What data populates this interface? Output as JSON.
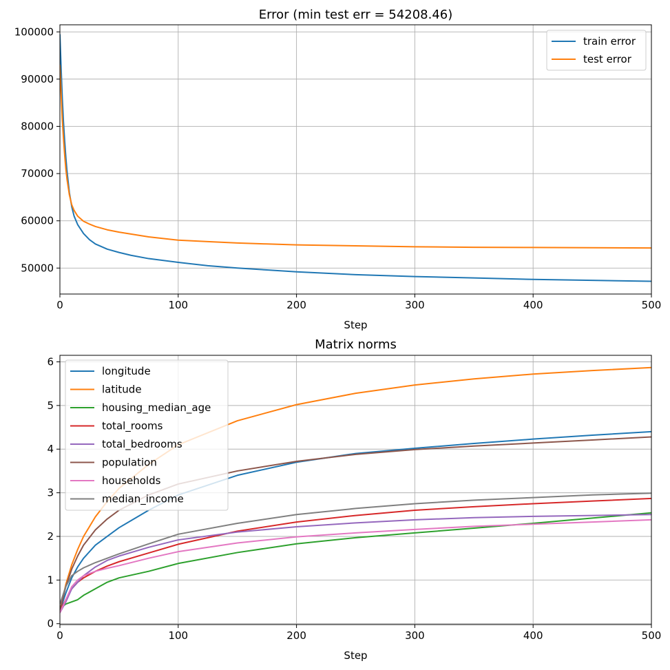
{
  "chart_data": [
    {
      "type": "line",
      "title": "Error (min test err = 54208.46)",
      "xlabel": "Step",
      "ylabel": "",
      "xlim": [
        0,
        500
      ],
      "ylim": [
        44500,
        101500
      ],
      "xticks": [
        0,
        100,
        200,
        300,
        400,
        500
      ],
      "yticks": [
        50000,
        60000,
        70000,
        80000,
        90000,
        100000
      ],
      "grid": true,
      "legend": "top-right",
      "series": [
        {
          "name": "train error",
          "color": "#1f77b4",
          "x": [
            0,
            1,
            2,
            3,
            4,
            5,
            6,
            8,
            10,
            12,
            15,
            20,
            25,
            30,
            40,
            50,
            60,
            75,
            100,
            125,
            150,
            175,
            200,
            250,
            300,
            350,
            400,
            450,
            500
          ],
          "y": [
            99500,
            92500,
            86000,
            81000,
            77000,
            73500,
            70500,
            66000,
            63000,
            61000,
            59200,
            57300,
            56000,
            55100,
            54000,
            53300,
            52700,
            52000,
            51200,
            50500,
            50000,
            49600,
            49200,
            48600,
            48200,
            47900,
            47600,
            47400,
            47200
          ]
        },
        {
          "name": "test error",
          "color": "#ff7f0e",
          "x": [
            0,
            1,
            2,
            3,
            4,
            5,
            6,
            8,
            10,
            12,
            15,
            20,
            25,
            30,
            40,
            50,
            60,
            75,
            100,
            125,
            150,
            175,
            200,
            250,
            300,
            350,
            400,
            450,
            500
          ],
          "y": [
            93000,
            87000,
            81500,
            77500,
            74000,
            71000,
            68800,
            65500,
            63400,
            62200,
            61000,
            59900,
            59300,
            58800,
            58100,
            57600,
            57200,
            56600,
            55900,
            55600,
            55300,
            55100,
            54900,
            54700,
            54500,
            54400,
            54350,
            54300,
            54250
          ]
        }
      ]
    },
    {
      "type": "line",
      "title": "Matrix norms",
      "xlabel": "Step",
      "ylabel": "",
      "xlim": [
        0,
        500
      ],
      "ylim": [
        -0.02,
        6.15
      ],
      "xticks": [
        0,
        100,
        200,
        300,
        400,
        500
      ],
      "yticks": [
        0,
        1,
        2,
        3,
        4,
        5,
        6
      ],
      "grid": true,
      "legend": "top-left",
      "x": [
        0,
        5,
        10,
        15,
        20,
        30,
        40,
        50,
        75,
        100,
        150,
        200,
        250,
        300,
        350,
        400,
        450,
        500
      ],
      "series": [
        {
          "name": "longitude",
          "color": "#1f77b4",
          "values": [
            0.3,
            0.7,
            1.05,
            1.3,
            1.5,
            1.8,
            2.0,
            2.2,
            2.6,
            2.95,
            3.4,
            3.7,
            3.9,
            4.02,
            4.13,
            4.23,
            4.32,
            4.4
          ]
        },
        {
          "name": "latitude",
          "color": "#ff7f0e",
          "values": [
            0.3,
            0.9,
            1.35,
            1.7,
            2.0,
            2.45,
            2.8,
            3.1,
            3.65,
            4.1,
            4.65,
            5.02,
            5.28,
            5.47,
            5.61,
            5.72,
            5.8,
            5.87
          ]
        },
        {
          "name": "housing_median_age",
          "color": "#2ca02c",
          "values": [
            0.35,
            0.45,
            0.5,
            0.55,
            0.65,
            0.8,
            0.95,
            1.05,
            1.2,
            1.38,
            1.63,
            1.83,
            1.97,
            2.08,
            2.19,
            2.3,
            2.42,
            2.54
          ]
        },
        {
          "name": "total_rooms",
          "color": "#d62728",
          "values": [
            0.3,
            0.55,
            0.8,
            0.95,
            1.05,
            1.2,
            1.32,
            1.42,
            1.62,
            1.82,
            2.12,
            2.33,
            2.48,
            2.6,
            2.68,
            2.75,
            2.81,
            2.87
          ]
        },
        {
          "name": "total_bedrooms",
          "color": "#9467bd",
          "values": [
            0.25,
            0.5,
            0.8,
            0.95,
            1.1,
            1.3,
            1.45,
            1.55,
            1.75,
            1.92,
            2.1,
            2.22,
            2.31,
            2.38,
            2.43,
            2.46,
            2.48,
            2.5
          ]
        },
        {
          "name": "population",
          "color": "#8c564b",
          "values": [
            0.3,
            0.85,
            1.25,
            1.55,
            1.8,
            2.15,
            2.4,
            2.6,
            2.95,
            3.2,
            3.5,
            3.72,
            3.88,
            3.99,
            4.07,
            4.14,
            4.21,
            4.28
          ]
        },
        {
          "name": "households",
          "color": "#e377c2",
          "values": [
            0.25,
            0.55,
            0.85,
            1.0,
            1.1,
            1.2,
            1.27,
            1.33,
            1.5,
            1.65,
            1.85,
            1.99,
            2.08,
            2.16,
            2.23,
            2.28,
            2.33,
            2.38
          ]
        },
        {
          "name": "median_income",
          "color": "#7f7f7f",
          "values": [
            0.45,
            0.85,
            1.1,
            1.2,
            1.28,
            1.4,
            1.5,
            1.6,
            1.83,
            2.05,
            2.3,
            2.5,
            2.64,
            2.75,
            2.83,
            2.89,
            2.95,
            2.99
          ]
        }
      ]
    }
  ]
}
